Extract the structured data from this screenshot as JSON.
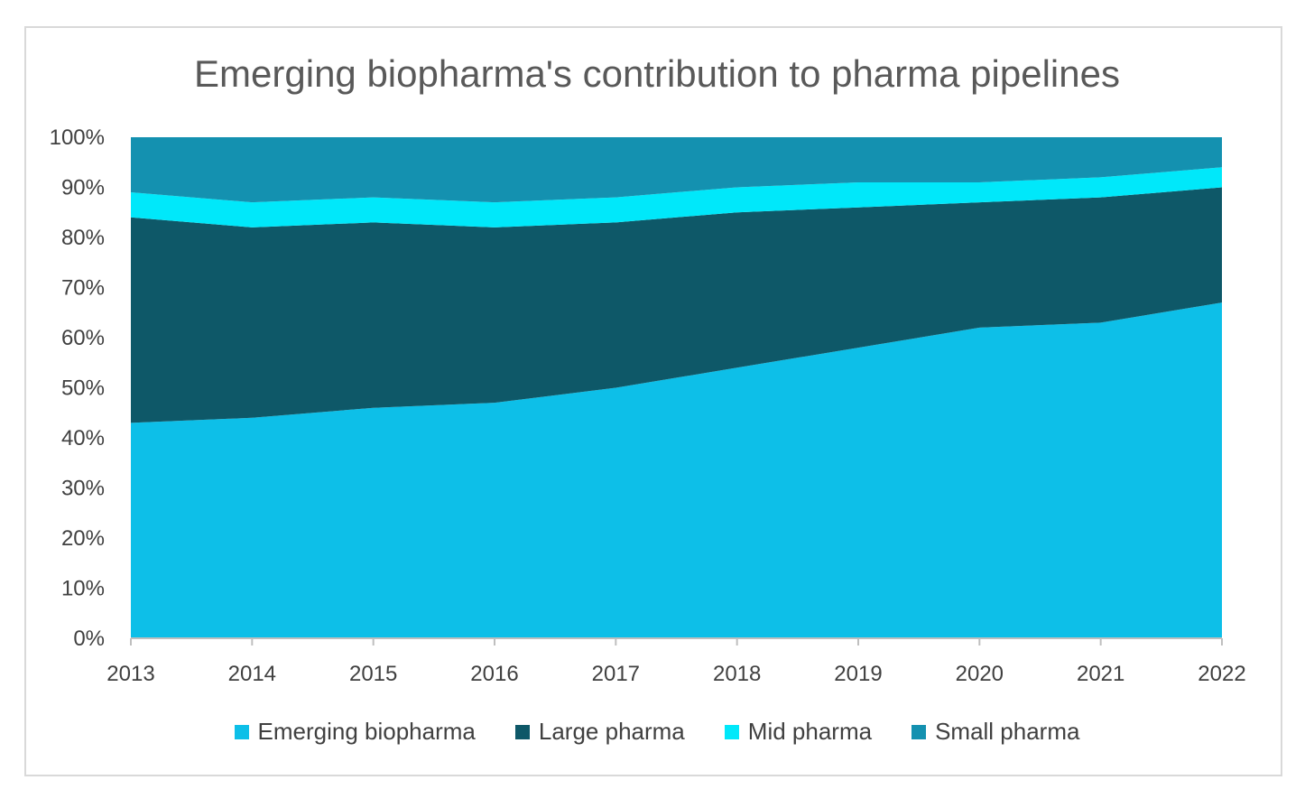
{
  "chart_data": {
    "type": "area",
    "stacked": "percent",
    "title": "Emerging biopharma's contribution to pharma pipelines",
    "xlabel": "",
    "ylabel": "",
    "x": [
      "2013",
      "2014",
      "2015",
      "2016",
      "2017",
      "2018",
      "2019",
      "2020",
      "2021",
      "2022"
    ],
    "y_ticks": [
      "0%",
      "10%",
      "20%",
      "30%",
      "40%",
      "50%",
      "60%",
      "70%",
      "80%",
      "90%",
      "100%"
    ],
    "ylim": [
      0,
      100
    ],
    "grid": false,
    "legend_position": "bottom",
    "series": [
      {
        "name": "Emerging biopharma",
        "color": "#0dbfe8",
        "values": [
          43,
          44,
          46,
          47,
          50,
          54,
          58,
          62,
          63,
          67
        ]
      },
      {
        "name": "Large pharma",
        "color": "#0e5868",
        "values": [
          41,
          38,
          37,
          35,
          33,
          31,
          28,
          25,
          25,
          23
        ]
      },
      {
        "name": "Mid pharma",
        "color": "#00e8fa",
        "values": [
          5,
          5,
          5,
          5,
          5,
          5,
          5,
          4,
          4,
          4
        ]
      },
      {
        "name": "Small pharma",
        "color": "#1491b0",
        "values": [
          11,
          13,
          12,
          13,
          12,
          10,
          9,
          9,
          8,
          6
        ]
      }
    ]
  }
}
